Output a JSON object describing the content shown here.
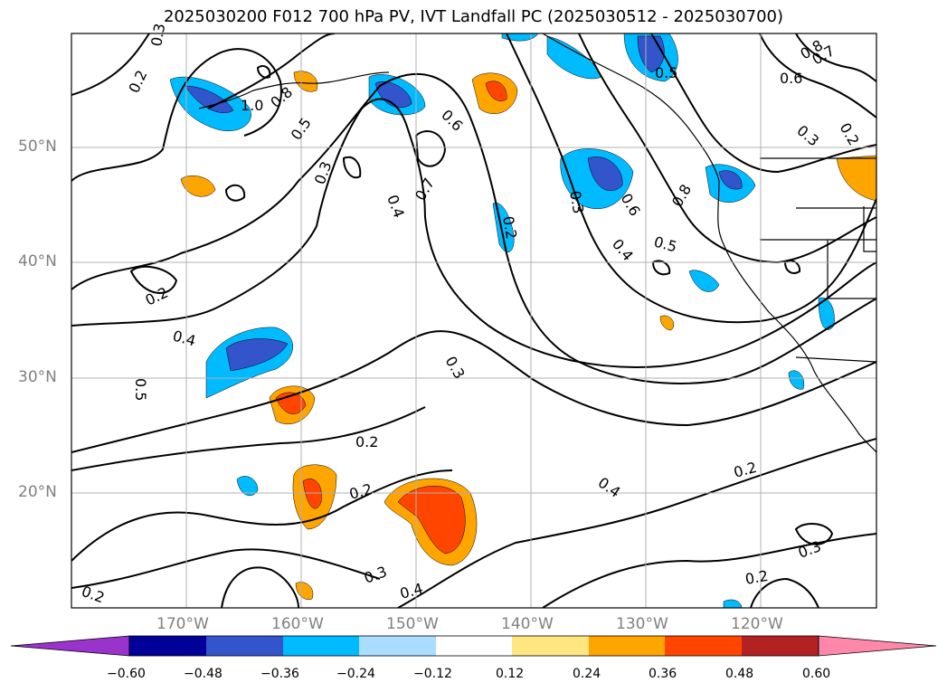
{
  "title": "2025030200 F012 700 hPa PV, IVT Landfall PC (2025030512 - 2025030700)",
  "map": {
    "lat_labels": [
      "50°N",
      "40°N",
      "30°N",
      "20°N"
    ],
    "lon_labels": [
      "170°W",
      "160°W",
      "150°W",
      "140°W",
      "130°W",
      "120°W"
    ],
    "contour_labels": [
      "0.3",
      "0.2",
      "1.0",
      "0.8",
      "0.5",
      "0.3",
      "0.6",
      "0.4",
      "0.7",
      "0.2",
      "0.3",
      "0.6",
      "0.8",
      "0.8",
      "0.6",
      "0.5",
      "0.4",
      "0.5",
      "0.7",
      "0.3",
      "0.2",
      "0.2",
      "0.4",
      "0.5",
      "0.3",
      "0.2",
      "0.2",
      "0.3",
      "0.4",
      "0.2",
      "0.3",
      "0.2",
      "0.2",
      "0.4"
    ]
  },
  "colorbar": {
    "ticks": [
      "−0.60",
      "−0.48",
      "−0.36",
      "−0.24",
      "−0.12",
      "0.12",
      "0.24",
      "0.36",
      "0.48",
      "0.60"
    ],
    "colors": [
      "#9933cc",
      "#000099",
      "#3355cc",
      "#00bbff",
      "#aaddff",
      "#ffffff",
      "#ffe680",
      "#ffa500",
      "#ff4500",
      "#b22222",
      "#ff88aa"
    ]
  }
}
